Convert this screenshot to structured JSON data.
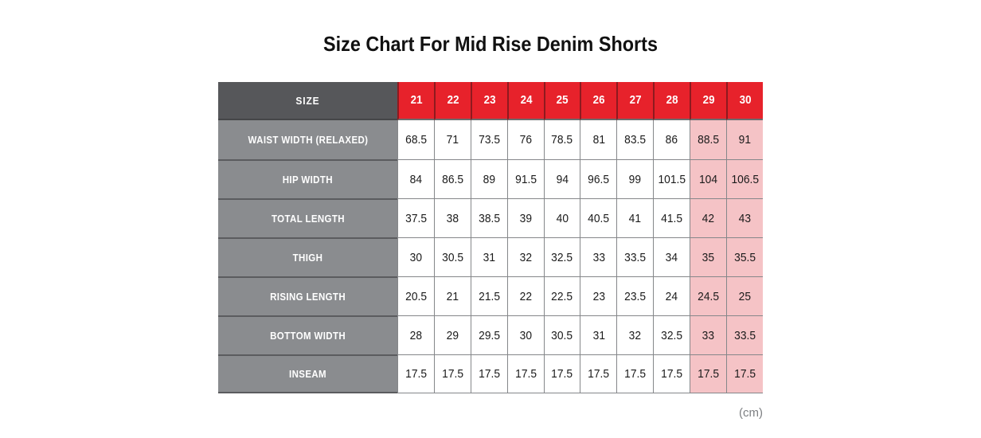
{
  "chart_data": {
    "type": "table",
    "title": "Size Chart For Mid Rise Denim Shorts",
    "unit_label": "(cm)",
    "columns": [
      "SIZE",
      "21",
      "22",
      "23",
      "24",
      "25",
      "26",
      "27",
      "28",
      "29",
      "30"
    ],
    "rows": [
      {
        "label": "WAIST WIDTH (RELAXED)",
        "values": [
          "68.5",
          "71",
          "73.5",
          "76",
          "78.5",
          "81",
          "83.5",
          "86",
          "88.5",
          "91"
        ]
      },
      {
        "label": "HIP WIDTH",
        "values": [
          "84",
          "86.5",
          "89",
          "91.5",
          "94",
          "96.5",
          "99",
          "101.5",
          "104",
          "106.5"
        ]
      },
      {
        "label": "TOTAL LENGTH",
        "values": [
          "37.5",
          "38",
          "38.5",
          "39",
          "40",
          "40.5",
          "41",
          "41.5",
          "42",
          "43"
        ]
      },
      {
        "label": "THIGH",
        "values": [
          "30",
          "30.5",
          "31",
          "32",
          "32.5",
          "33",
          "33.5",
          "34",
          "35",
          "35.5"
        ]
      },
      {
        "label": "RISING LENGTH",
        "values": [
          "20.5",
          "21",
          "21.5",
          "22",
          "22.5",
          "23",
          "23.5",
          "24",
          "24.5",
          "25"
        ]
      },
      {
        "label": "BOTTOM WIDTH",
        "values": [
          "28",
          "29",
          "29.5",
          "30",
          "30.5",
          "31",
          "32",
          "32.5",
          "33",
          "33.5"
        ]
      },
      {
        "label": "INSEAM",
        "values": [
          "17.5",
          "17.5",
          "17.5",
          "17.5",
          "17.5",
          "17.5",
          "17.5",
          "17.5",
          "17.5",
          "17.5"
        ]
      }
    ],
    "highlighted_sizes": [
      "29",
      "30"
    ],
    "layout": {
      "grid": "on",
      "label_column_position": "left",
      "header_row_position": "top"
    }
  },
  "colors": {
    "header_red": "#e7222b",
    "highlight_pink": "#f5c3c6",
    "size_cell_dark_gray": "#56575a",
    "label_gray": "#8a8c8f",
    "grid_border_gray": "#85878a",
    "unit_text_gray": "#7e8083",
    "title_black": "#111111"
  }
}
